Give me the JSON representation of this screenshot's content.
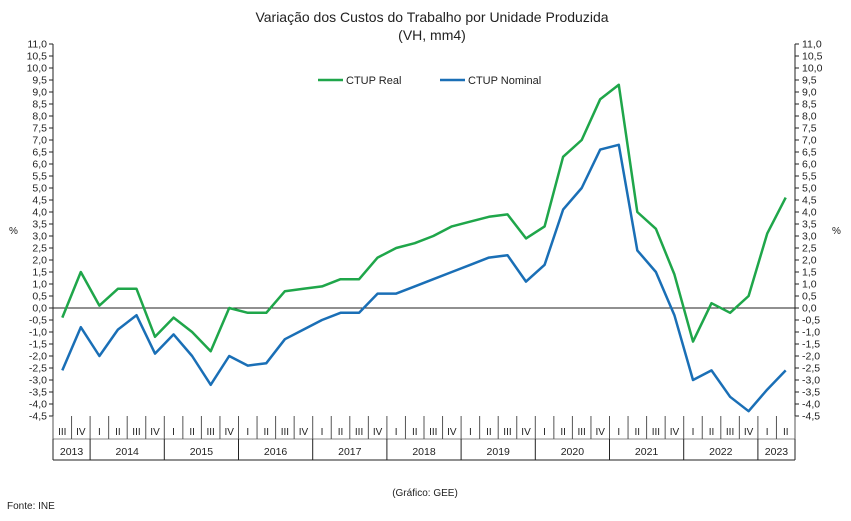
{
  "chart_data": {
    "type": "line",
    "title": "Variação dos Custos do Trabalho por Unidade Produzida",
    "subtitle": "(VH, mm4)",
    "ylabel_left": "%",
    "ylabel_right": "%",
    "ylim": [
      -4.5,
      11.0
    ],
    "y_ticks": [
      "11,0",
      "10,5",
      "10,0",
      "9,5",
      "9,0",
      "8,5",
      "8,0",
      "7,5",
      "7,0",
      "6,5",
      "6,0",
      "5,5",
      "5,0",
      "4,5",
      "4,0",
      "3,5",
      "3,0",
      "2,5",
      "2,0",
      "1,5",
      "1,0",
      "0,5",
      "0,0",
      "-0,5",
      "-1,0",
      "-1,5",
      "-2,0",
      "-2,5",
      "-3,0",
      "-3,5",
      "-4,0",
      "-4,5"
    ],
    "quarters": [
      "III",
      "IV",
      "I",
      "II",
      "III",
      "IV",
      "I",
      "II",
      "III",
      "IV",
      "I",
      "II",
      "III",
      "IV",
      "I",
      "II",
      "III",
      "IV",
      "I",
      "II",
      "III",
      "IV",
      "I",
      "II",
      "III",
      "IV",
      "I",
      "II",
      "III",
      "IV",
      "I",
      "II",
      "III",
      "IV",
      "I",
      "II",
      "III",
      "IV",
      "I",
      "II"
    ],
    "years": [
      {
        "label": "2013",
        "quarters": 2
      },
      {
        "label": "2014",
        "quarters": 4
      },
      {
        "label": "2015",
        "quarters": 4
      },
      {
        "label": "2016",
        "quarters": 4
      },
      {
        "label": "2017",
        "quarters": 4
      },
      {
        "label": "2018",
        "quarters": 4
      },
      {
        "label": "2019",
        "quarters": 4
      },
      {
        "label": "2020",
        "quarters": 4
      },
      {
        "label": "2021",
        "quarters": 4
      },
      {
        "label": "2022",
        "quarters": 4
      },
      {
        "label": "2023",
        "quarters": 2
      }
    ],
    "series": [
      {
        "name": "CTUP Real",
        "color": "#1fa64a",
        "values": [
          -0.4,
          1.5,
          0.1,
          0.8,
          0.8,
          -1.2,
          -0.4,
          -1.0,
          -1.8,
          0.0,
          -0.2,
          -0.2,
          0.7,
          0.8,
          0.9,
          1.2,
          1.2,
          2.1,
          2.5,
          2.7,
          3.0,
          3.4,
          3.6,
          3.8,
          3.9,
          2.9,
          3.4,
          6.3,
          7.0,
          8.7,
          9.3,
          4.0,
          3.3,
          1.4,
          -1.4,
          0.2,
          -0.2,
          0.5,
          3.1,
          4.6
        ]
      },
      {
        "name": "CTUP Nominal",
        "color": "#1a6fb6",
        "values": [
          -2.6,
          -0.8,
          -2.0,
          -0.9,
          -0.3,
          -1.9,
          -1.1,
          -2.0,
          -3.2,
          -2.0,
          -2.4,
          -2.3,
          -1.3,
          -0.9,
          -0.5,
          -0.2,
          -0.2,
          0.6,
          0.6,
          0.9,
          1.2,
          1.5,
          1.8,
          2.1,
          2.2,
          1.1,
          1.8,
          4.1,
          5.0,
          6.6,
          6.8,
          2.4,
          1.5,
          -0.3,
          -3.0,
          -2.6,
          -3.7,
          -4.3,
          -3.4,
          -2.6
        ]
      }
    ]
  },
  "footer": {
    "source": "Fonte: INE",
    "credit": "(Gráfico: GEE)"
  }
}
